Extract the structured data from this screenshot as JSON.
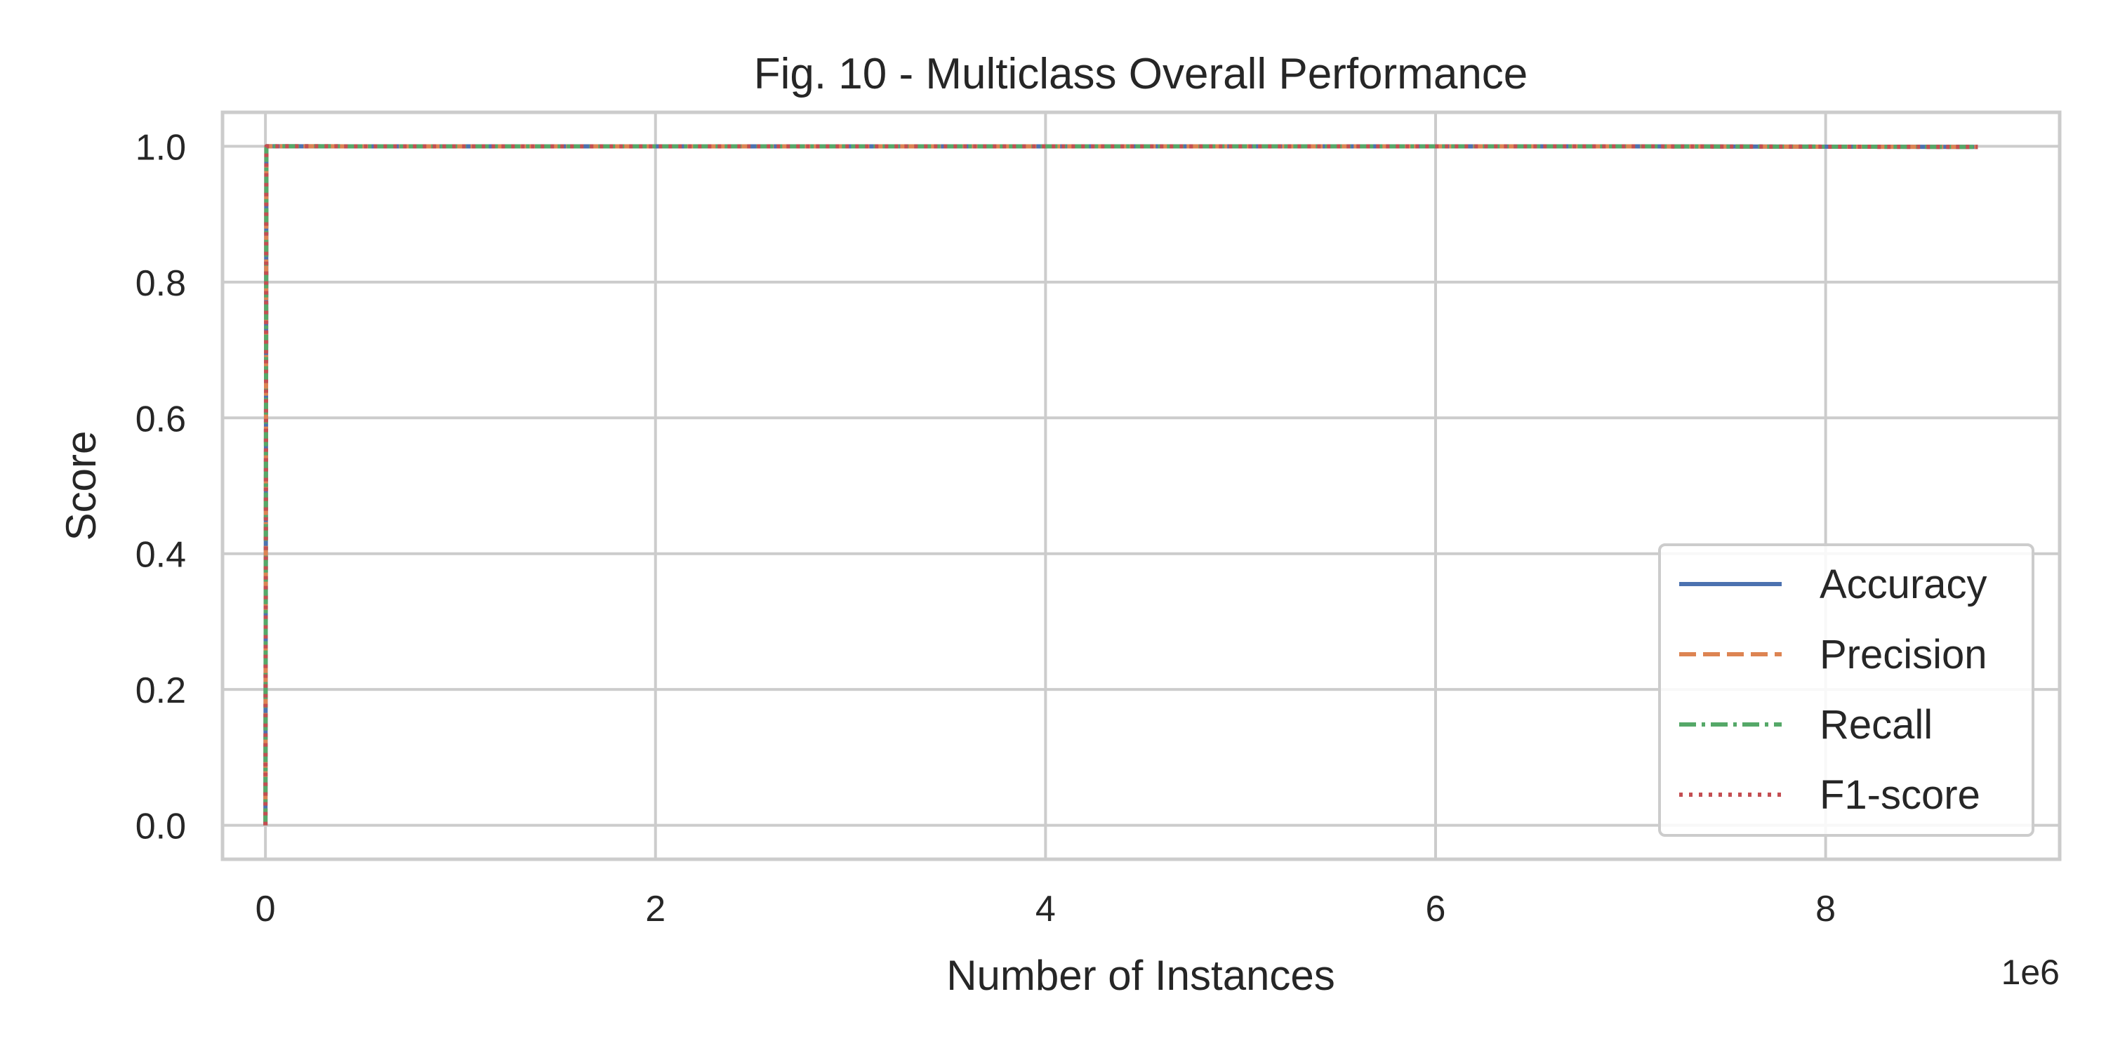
{
  "chart_data": {
    "type": "line",
    "title": "Fig. 10 - Multiclass Overall Performance",
    "xlabel": "Number of Instances",
    "ylabel": "Score",
    "x_offset_label": "1e6",
    "xlim": [
      -220000,
      9200000
    ],
    "ylim": [
      -0.05,
      1.05
    ],
    "x_tick_values": [
      0,
      2000000,
      4000000,
      6000000,
      8000000
    ],
    "x_ticks": [
      "0",
      "2",
      "4",
      "6",
      "8"
    ],
    "y_tick_values": [
      0.0,
      0.2,
      0.4,
      0.6,
      0.8,
      1.0
    ],
    "y_ticks": [
      "0.0",
      "0.2",
      "0.4",
      "0.6",
      "0.8",
      "1.0"
    ],
    "grid": true,
    "legend_position": "lower-right",
    "series": [
      {
        "name": "Accuracy",
        "color": "#4c72b0",
        "style": "solid",
        "x": [
          0,
          5000,
          20000,
          1000000,
          3000000,
          5000000,
          7000000,
          8780000
        ],
        "y": [
          0.0,
          1.0,
          1.0,
          0.9999,
          0.9999,
          0.9999,
          0.9999,
          0.999
        ]
      },
      {
        "name": "Precision",
        "color": "#dd8452",
        "style": "dashed",
        "x": [
          0,
          5000,
          20000,
          1000000,
          3000000,
          5000000,
          7000000,
          8780000
        ],
        "y": [
          0.0,
          1.0,
          1.0,
          0.9999,
          0.9999,
          0.9999,
          0.9999,
          0.999
        ]
      },
      {
        "name": "Recall",
        "color": "#55a868",
        "style": "dashdot",
        "x": [
          0,
          5000,
          20000,
          1000000,
          3000000,
          5000000,
          7000000,
          8780000
        ],
        "y": [
          0.0,
          1.0,
          1.0,
          0.9999,
          0.9999,
          0.9999,
          0.9999,
          0.999
        ]
      },
      {
        "name": "F1-score",
        "color": "#c44e52",
        "style": "dotted",
        "x": [
          0,
          5000,
          20000,
          1000000,
          3000000,
          5000000,
          7000000,
          8780000
        ],
        "y": [
          0.0,
          1.0,
          1.0,
          0.9999,
          0.9999,
          0.9999,
          0.9999,
          0.999
        ]
      }
    ]
  }
}
